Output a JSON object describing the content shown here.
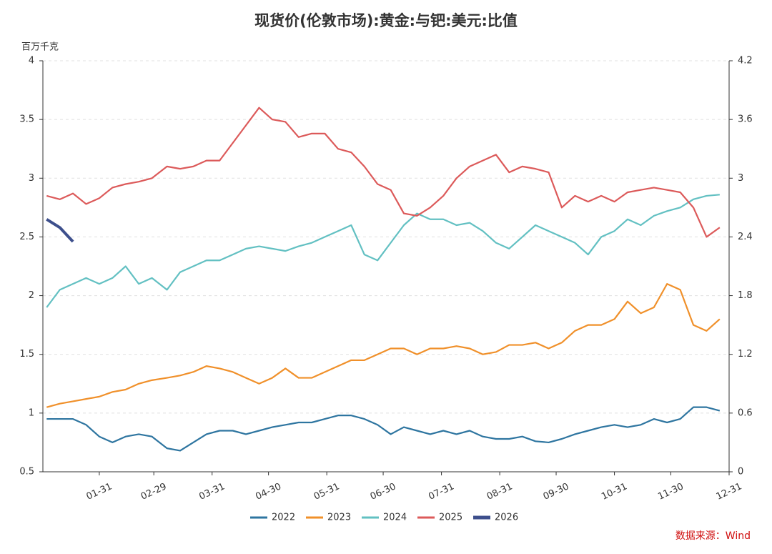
{
  "chart_data": {
    "type": "line",
    "title": "现货价(伦敦市场):黄金:与钯:美元:比值",
    "y_label": "百万千克",
    "source": "数据来源：Wind",
    "x": [
      "01-03",
      "01-10",
      "01-17",
      "01-24",
      "01-31",
      "02-07",
      "02-14",
      "02-21",
      "02-28",
      "03-07",
      "03-14",
      "03-21",
      "03-28",
      "04-04",
      "04-11",
      "04-18",
      "04-25",
      "05-02",
      "05-09",
      "05-16",
      "05-23",
      "05-30",
      "06-06",
      "06-13",
      "06-20",
      "06-27",
      "07-04",
      "07-11",
      "07-18",
      "07-25",
      "08-01",
      "08-08",
      "08-15",
      "08-22",
      "08-29",
      "09-05",
      "09-12",
      "09-19",
      "09-26",
      "10-03",
      "10-10",
      "10-17",
      "10-24",
      "10-31",
      "11-07",
      "11-14",
      "11-21",
      "11-28",
      "12-05",
      "12-12",
      "12-19",
      "12-26"
    ],
    "xticks": [
      "01-31",
      "02-29",
      "03-31",
      "04-30",
      "05-31",
      "06-30",
      "07-31",
      "08-31",
      "09-30",
      "10-31",
      "11-30",
      "12-31"
    ],
    "ylim": [
      0.5,
      4
    ],
    "yticks": [
      0.5,
      1,
      1.5,
      2,
      2.5,
      3,
      3.5,
      4
    ],
    "y2lim": [
      0,
      4.2
    ],
    "y2ticks": [
      0,
      0.6,
      1.2,
      1.8,
      2.4,
      3,
      3.6,
      4.2
    ],
    "grid": true,
    "legend": "bottom",
    "series": [
      {
        "name": "2022",
        "color": "#2e75a0",
        "values": [
          0.95,
          0.95,
          0.95,
          0.9,
          0.8,
          0.75,
          0.8,
          0.82,
          0.8,
          0.7,
          0.68,
          0.75,
          0.82,
          0.85,
          0.85,
          0.82,
          0.85,
          0.88,
          0.9,
          0.92,
          0.92,
          0.95,
          0.98,
          0.98,
          0.95,
          0.9,
          0.82,
          0.88,
          0.85,
          0.82,
          0.85,
          0.82,
          0.85,
          0.8,
          0.78,
          0.78,
          0.8,
          0.76,
          0.75,
          0.78,
          0.82,
          0.85,
          0.88,
          0.9,
          0.88,
          0.9,
          0.95,
          0.92,
          0.95,
          1.05,
          1.05,
          1.02
        ]
      },
      {
        "name": "2023",
        "color": "#f0902a",
        "values": [
          1.05,
          1.08,
          1.1,
          1.12,
          1.14,
          1.18,
          1.2,
          1.25,
          1.28,
          1.3,
          1.32,
          1.35,
          1.4,
          1.38,
          1.35,
          1.3,
          1.25,
          1.3,
          1.38,
          1.3,
          1.3,
          1.35,
          1.4,
          1.45,
          1.45,
          1.5,
          1.55,
          1.55,
          1.5,
          1.55,
          1.55,
          1.57,
          1.55,
          1.5,
          1.52,
          1.58,
          1.58,
          1.6,
          1.55,
          1.6,
          1.7,
          1.75,
          1.75,
          1.8,
          1.95,
          1.85,
          1.9,
          2.1,
          2.05,
          1.75,
          1.7,
          1.8
        ]
      },
      {
        "name": "2024",
        "color": "#62c0c2",
        "values": [
          1.9,
          2.05,
          2.1,
          2.15,
          2.1,
          2.15,
          2.25,
          2.1,
          2.15,
          2.05,
          2.2,
          2.25,
          2.3,
          2.3,
          2.35,
          2.4,
          2.42,
          2.4,
          2.38,
          2.42,
          2.45,
          2.5,
          2.55,
          2.6,
          2.35,
          2.3,
          2.45,
          2.6,
          2.7,
          2.65,
          2.65,
          2.6,
          2.62,
          2.55,
          2.45,
          2.4,
          2.5,
          2.6,
          2.55,
          2.5,
          2.45,
          2.35,
          2.5,
          2.55,
          2.65,
          2.6,
          2.68,
          2.72,
          2.75,
          2.82,
          2.85,
          2.86
        ]
      },
      {
        "name": "2025",
        "color": "#dc5a5a",
        "values": [
          2.85,
          2.82,
          2.87,
          2.78,
          2.83,
          2.92,
          2.95,
          2.97,
          3.0,
          3.1,
          3.08,
          3.1,
          3.15,
          3.15,
          3.3,
          3.45,
          3.6,
          3.5,
          3.48,
          3.35,
          3.38,
          3.38,
          3.25,
          3.22,
          3.1,
          2.95,
          2.9,
          2.7,
          2.68,
          2.75,
          2.85,
          3.0,
          3.1,
          3.15,
          3.2,
          3.05,
          3.1,
          3.08,
          3.05,
          2.75,
          2.85,
          2.8,
          2.85,
          2.8,
          2.88,
          2.9,
          2.92,
          2.9,
          2.88,
          2.75,
          2.5,
          2.58
        ]
      },
      {
        "name": "2026",
        "color": "#3d4f8c",
        "values": [
          2.65,
          2.58,
          2.46,
          null,
          null,
          null,
          null,
          null,
          null,
          null,
          null,
          null,
          null,
          null,
          null,
          null,
          null,
          null,
          null,
          null,
          null,
          null,
          null,
          null,
          null,
          null,
          null,
          null,
          null,
          null,
          null,
          null,
          null,
          null,
          null,
          null,
          null,
          null,
          null,
          null,
          null,
          null,
          null,
          null,
          null,
          null,
          null,
          null,
          null,
          null,
          null,
          null
        ]
      }
    ]
  }
}
